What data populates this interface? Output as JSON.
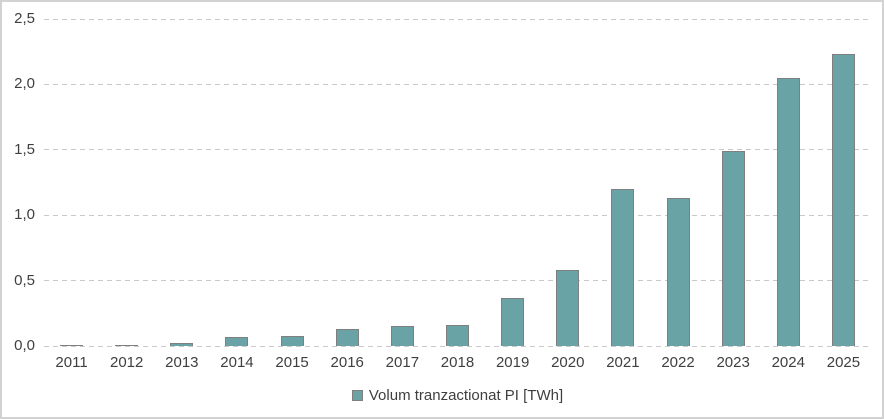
{
  "chart_data": {
    "type": "bar",
    "title": "",
    "categories": [
      "2011",
      "2012",
      "2013",
      "2014",
      "2015",
      "2016",
      "2017",
      "2018",
      "2019",
      "2020",
      "2021",
      "2022",
      "2023",
      "2024",
      "2025"
    ],
    "series": [
      {
        "name": "Volum tranzactionat PI [TWh]",
        "values": [
          0.01,
          0.01,
          0.02,
          0.07,
          0.08,
          0.13,
          0.15,
          0.16,
          0.37,
          0.58,
          1.2,
          1.13,
          1.49,
          2.05,
          2.23
        ]
      }
    ],
    "xlabel": "",
    "ylabel": "",
    "ylim": [
      0,
      2.5
    ],
    "ytick_step": 0.5,
    "ytick_labels": [
      "0,0",
      "0,5",
      "1,0",
      "1,5",
      "2,0",
      "2,5"
    ],
    "decimal_separator": ",",
    "grid": "horizontal-dashed",
    "legend_position": "bottom-center"
  },
  "legend": {
    "label": "Volum tranzactionat PI [TWh]"
  },
  "colors": {
    "bar_fill": "#6AA3A5",
    "bar_border": "#7F7F7F",
    "gridline": "#C9C9C9",
    "text": "#3F3F3F",
    "frame_border": "#D2D2D2",
    "background": "#FFFFFF"
  }
}
